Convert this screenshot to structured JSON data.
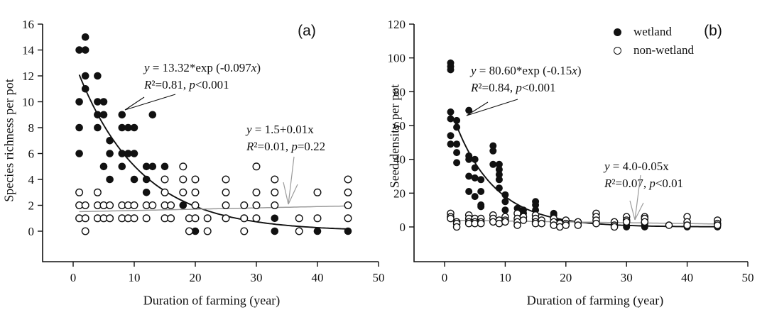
{
  "figure": {
    "background": "#ffffff",
    "text_color": "#111111",
    "wetland_color": "#111111",
    "non_wetland_line_color": "#9b9b9b"
  },
  "legend": {
    "position": "top-right",
    "entries": [
      {
        "marker": "filled-circle",
        "label": "wetland"
      },
      {
        "marker": "open-circle",
        "label": "non-wetland"
      }
    ]
  },
  "chart_data": [
    {
      "type": "scatter",
      "panel_label": "(a)",
      "xlabel": "Duration of farming (year)",
      "ylabel": "Species richness per pot",
      "xlim": [
        0,
        50
      ],
      "ylim": [
        0,
        16
      ],
      "xticks": [
        0,
        10,
        20,
        30,
        40,
        50
      ],
      "yticks": [
        0,
        2,
        4,
        6,
        8,
        10,
        12,
        14,
        16
      ],
      "grid": false,
      "series": [
        {
          "name": "wetland",
          "marker": "filled",
          "points": [
            [
              2,
              15
            ],
            [
              1,
              14
            ],
            [
              2,
              14
            ],
            [
              2,
              12
            ],
            [
              4,
              12
            ],
            [
              2,
              11
            ],
            [
              1,
              10
            ],
            [
              4,
              10
            ],
            [
              5,
              10
            ],
            [
              4,
              9
            ],
            [
              5,
              9
            ],
            [
              8,
              9
            ],
            [
              13,
              9
            ],
            [
              1,
              8
            ],
            [
              4,
              8
            ],
            [
              8,
              8
            ],
            [
              9,
              8
            ],
            [
              10,
              8
            ],
            [
              6,
              7
            ],
            [
              1,
              6
            ],
            [
              6,
              6
            ],
            [
              8,
              6
            ],
            [
              9,
              6
            ],
            [
              10,
              6
            ],
            [
              5,
              5
            ],
            [
              8,
              5
            ],
            [
              12,
              5
            ],
            [
              13,
              5
            ],
            [
              15,
              5
            ],
            [
              6,
              4
            ],
            [
              10,
              4
            ],
            [
              12,
              4
            ],
            [
              12,
              3
            ],
            [
              18,
              2
            ],
            [
              33,
              1
            ],
            [
              20,
              0
            ],
            [
              33,
              0
            ],
            [
              40,
              0
            ],
            [
              45,
              0
            ]
          ]
        },
        {
          "name": "non-wetland",
          "marker": "open",
          "points": [
            [
              18,
              5
            ],
            [
              30,
              5
            ],
            [
              15,
              4
            ],
            [
              18,
              4
            ],
            [
              20,
              4
            ],
            [
              25,
              4
            ],
            [
              33,
              4
            ],
            [
              45,
              4
            ],
            [
              1,
              3
            ],
            [
              4,
              3
            ],
            [
              15,
              3
            ],
            [
              18,
              3
            ],
            [
              20,
              3
            ],
            [
              25,
              3
            ],
            [
              30,
              3
            ],
            [
              33,
              3
            ],
            [
              40,
              3
            ],
            [
              45,
              3
            ],
            [
              1,
              2
            ],
            [
              2,
              2
            ],
            [
              4,
              2
            ],
            [
              5,
              2
            ],
            [
              6,
              2
            ],
            [
              8,
              2
            ],
            [
              9,
              2
            ],
            [
              10,
              2
            ],
            [
              12,
              2
            ],
            [
              13,
              2
            ],
            [
              15,
              2
            ],
            [
              16,
              2
            ],
            [
              20,
              2
            ],
            [
              25,
              2
            ],
            [
              28,
              2
            ],
            [
              30,
              2
            ],
            [
              33,
              2
            ],
            [
              45,
              2
            ],
            [
              1,
              1
            ],
            [
              2,
              1
            ],
            [
              4,
              1
            ],
            [
              5,
              1
            ],
            [
              6,
              1
            ],
            [
              8,
              1
            ],
            [
              9,
              1
            ],
            [
              10,
              1
            ],
            [
              12,
              1
            ],
            [
              15,
              1
            ],
            [
              16,
              1
            ],
            [
              19,
              1
            ],
            [
              20,
              1
            ],
            [
              22,
              1
            ],
            [
              25,
              1
            ],
            [
              28,
              1
            ],
            [
              30,
              1
            ],
            [
              37,
              1
            ],
            [
              40,
              1
            ],
            [
              45,
              1
            ],
            [
              2,
              0
            ],
            [
              19,
              0
            ],
            [
              22,
              0
            ],
            [
              28,
              0
            ],
            [
              37,
              0
            ]
          ]
        }
      ],
      "fits": [
        {
          "series": "wetland",
          "kind": "exp",
          "a": 13.32,
          "b": -0.097,
          "draw_x": [
            1,
            45
          ],
          "color": "#111111",
          "label": "y = 13.32*exp (-0.097x)",
          "stats": "R²=0.81, p<0.001"
        },
        {
          "series": "non-wetland",
          "kind": "linear",
          "a": 1.5,
          "b": 0.01,
          "draw_x": [
            1,
            45
          ],
          "color": "#9b9b9b",
          "label": "y = 1.5+0.01x",
          "stats": "R²=0.01, p=0.22"
        }
      ]
    },
    {
      "type": "scatter",
      "panel_label": "(b)",
      "xlabel": "Duration of farming (year)",
      "ylabel": "Seed density per pot",
      "xlim": [
        0,
        50
      ],
      "ylim": [
        0,
        120
      ],
      "xticks": [
        0,
        10,
        20,
        30,
        40,
        50
      ],
      "yticks": [
        0,
        20,
        40,
        60,
        80,
        100,
        120
      ],
      "grid": false,
      "series": [
        {
          "name": "wetland",
          "marker": "filled",
          "points": [
            [
              1,
              97
            ],
            [
              1,
              95
            ],
            [
              1,
              93
            ],
            [
              4,
              69
            ],
            [
              1,
              68
            ],
            [
              1,
              64
            ],
            [
              2,
              63
            ],
            [
              2,
              59
            ],
            [
              1,
              54
            ],
            [
              1,
              49
            ],
            [
              2,
              49
            ],
            [
              2,
              44
            ],
            [
              4,
              42
            ],
            [
              4,
              40
            ],
            [
              5,
              40
            ],
            [
              2,
              38
            ],
            [
              5,
              35
            ],
            [
              4,
              30
            ],
            [
              5,
              29
            ],
            [
              6,
              28
            ],
            [
              8,
              48
            ],
            [
              8,
              45
            ],
            [
              8,
              37
            ],
            [
              9,
              37
            ],
            [
              9,
              34
            ],
            [
              9,
              31
            ],
            [
              9,
              28
            ],
            [
              9,
              23
            ],
            [
              4,
              21
            ],
            [
              6,
              21
            ],
            [
              5,
              18
            ],
            [
              6,
              13
            ],
            [
              6,
              12
            ],
            [
              10,
              19
            ],
            [
              10,
              15
            ],
            [
              10,
              10
            ],
            [
              12,
              11
            ],
            [
              12,
              8
            ],
            [
              13,
              10
            ],
            [
              13,
              8
            ],
            [
              15,
              15
            ],
            [
              15,
              13
            ],
            [
              15,
              10
            ],
            [
              18,
              8
            ],
            [
              18,
              7
            ],
            [
              18,
              5
            ],
            [
              18,
              4
            ],
            [
              19,
              3
            ],
            [
              22,
              2
            ],
            [
              22,
              1
            ],
            [
              25,
              3
            ],
            [
              25,
              2
            ],
            [
              28,
              2
            ],
            [
              28,
              1
            ],
            [
              30,
              1
            ],
            [
              30,
              0
            ],
            [
              33,
              2
            ],
            [
              33,
              1
            ],
            [
              33,
              0
            ],
            [
              40,
              1
            ],
            [
              40,
              0
            ],
            [
              45,
              1
            ],
            [
              45,
              0
            ]
          ]
        },
        {
          "name": "non-wetland",
          "marker": "open",
          "points": [
            [
              1,
              8
            ],
            [
              1,
              6
            ],
            [
              1,
              5
            ],
            [
              2,
              3
            ],
            [
              2,
              2
            ],
            [
              2,
              0
            ],
            [
              4,
              7
            ],
            [
              4,
              5
            ],
            [
              4,
              3
            ],
            [
              4,
              2
            ],
            [
              5,
              5
            ],
            [
              5,
              3
            ],
            [
              5,
              2
            ],
            [
              6,
              5
            ],
            [
              6,
              3
            ],
            [
              6,
              2
            ],
            [
              8,
              7
            ],
            [
              8,
              5
            ],
            [
              8,
              3
            ],
            [
              9,
              4
            ],
            [
              9,
              2
            ],
            [
              10,
              6
            ],
            [
              10,
              4
            ],
            [
              10,
              3
            ],
            [
              12,
              8
            ],
            [
              12,
              5
            ],
            [
              12,
              3
            ],
            [
              12,
              1
            ],
            [
              13,
              6
            ],
            [
              13,
              4
            ],
            [
              15,
              7
            ],
            [
              15,
              5
            ],
            [
              15,
              3
            ],
            [
              15,
              2
            ],
            [
              16,
              4
            ],
            [
              16,
              2
            ],
            [
              18,
              5
            ],
            [
              18,
              3
            ],
            [
              18,
              1
            ],
            [
              19,
              2
            ],
            [
              19,
              0
            ],
            [
              20,
              4
            ],
            [
              20,
              2
            ],
            [
              20,
              1
            ],
            [
              22,
              3
            ],
            [
              22,
              1
            ],
            [
              25,
              8
            ],
            [
              25,
              6
            ],
            [
              25,
              4
            ],
            [
              25,
              2
            ],
            [
              28,
              3
            ],
            [
              28,
              1
            ],
            [
              28,
              0
            ],
            [
              30,
              6
            ],
            [
              30,
              4
            ],
            [
              30,
              3
            ],
            [
              33,
              6
            ],
            [
              33,
              5
            ],
            [
              33,
              3
            ],
            [
              37,
              1
            ],
            [
              40,
              6
            ],
            [
              40,
              3
            ],
            [
              40,
              1
            ],
            [
              45,
              4
            ],
            [
              45,
              2
            ],
            [
              45,
              1
            ]
          ]
        }
      ],
      "fits": [
        {
          "series": "wetland",
          "kind": "exp",
          "a": 80.6,
          "b": -0.15,
          "draw_x": [
            1.7,
            45
          ],
          "color": "#111111",
          "label": "y = 80.60*exp (-0.15x)",
          "stats": "R²=0.84, p<0.001"
        },
        {
          "series": "non-wetland",
          "kind": "linear",
          "a": 4.0,
          "b": -0.05,
          "draw_x": [
            1,
            45
          ],
          "color": "#9b9b9b",
          "label": "y = 4.0-0.05x",
          "stats": "R²=0.07, p<0.01"
        }
      ]
    }
  ]
}
